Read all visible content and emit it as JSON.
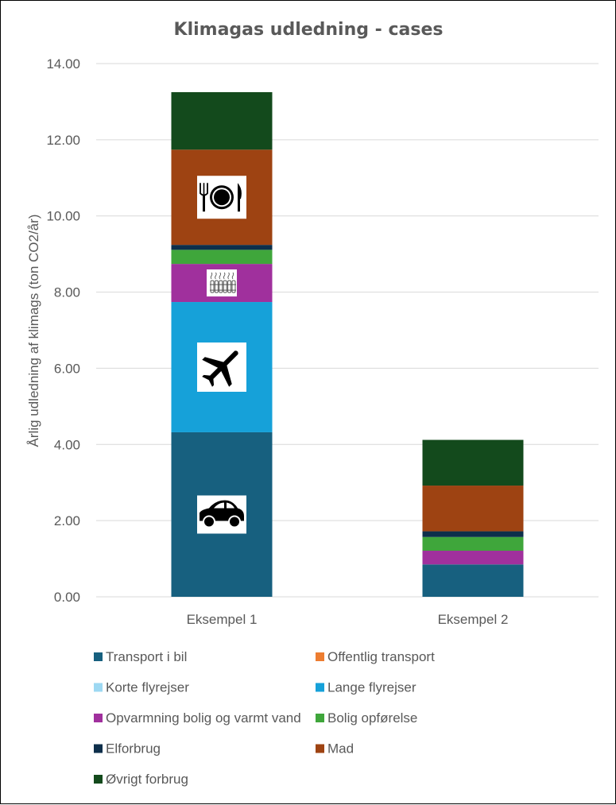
{
  "chart_data": {
    "type": "bar",
    "stacked": true,
    "title": "Klimagas udledning - cases",
    "xlabel": "",
    "ylabel": "Årlig udledning af klimags (ton CO2/år)",
    "ylim": [
      0,
      14
    ],
    "yticks": [
      "0.00",
      "2.00",
      "4.00",
      "6.00",
      "8.00",
      "10.00",
      "12.00",
      "14.00"
    ],
    "grid": true,
    "legend_position": "bottom",
    "categories": [
      "Eksempel 1",
      "Eksempel 2"
    ],
    "series": [
      {
        "name": "Transport i bil",
        "color": "#17607f",
        "values": [
          4.32,
          0.85
        ]
      },
      {
        "name": "Offentlig transport",
        "color": "#ed7d31",
        "values": [
          0,
          0
        ]
      },
      {
        "name": "Korte flyrejser",
        "color": "#9dd8f2",
        "values": [
          0,
          0
        ]
      },
      {
        "name": "Lange flyrejser",
        "color": "#16a1d9",
        "values": [
          3.42,
          0
        ]
      },
      {
        "name": "Opvarmning bolig og varmt vand",
        "color": "#a0309d",
        "values": [
          1.0,
          0.36
        ]
      },
      {
        "name": "Bolig opførelse",
        "color": "#3fa63b",
        "values": [
          0.37,
          0.36
        ]
      },
      {
        "name": "Elforbrug",
        "color": "#0d2f4b",
        "values": [
          0.13,
          0.15
        ]
      },
      {
        "name": "Mad",
        "color": "#9e4312",
        "values": [
          2.5,
          1.2
        ]
      },
      {
        "name": "Øvrigt forbrug",
        "color": "#134a1c",
        "values": [
          1.51,
          1.2
        ]
      }
    ],
    "bar_icons": [
      {
        "category": "Eksempel 1",
        "series": "Transport i bil",
        "icon": "car-icon"
      },
      {
        "category": "Eksempel 1",
        "series": "Lange flyrejser",
        "icon": "airplane-icon"
      },
      {
        "category": "Eksempel 1",
        "series": "Opvarmning bolig og varmt vand",
        "icon": "radiator-icon"
      },
      {
        "category": "Eksempel 1",
        "series": "Mad",
        "icon": "plate-cutlery-icon"
      }
    ]
  }
}
